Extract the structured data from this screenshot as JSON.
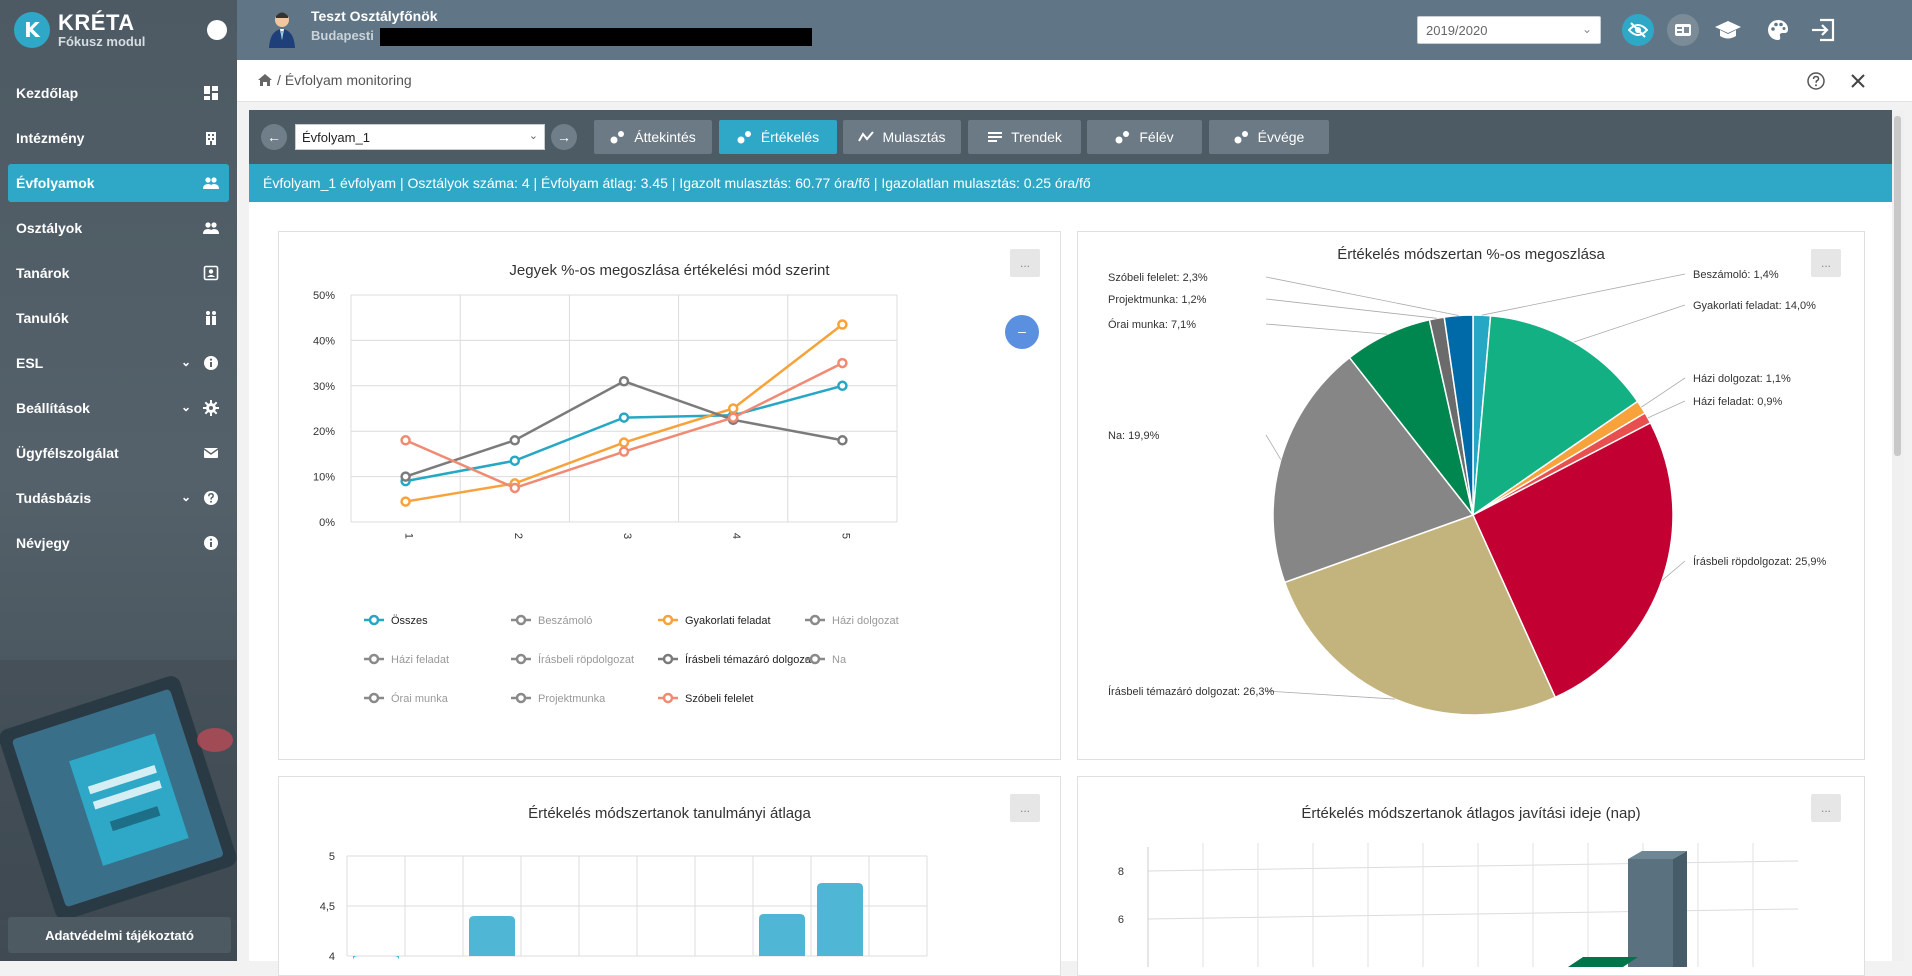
{
  "sidebar": {
    "logo_title": "KRÉTA",
    "logo_subtitle": "Fókusz modul",
    "items": [
      {
        "label": "Kezdőlap",
        "icon": "dashboard-icon"
      },
      {
        "label": "Intézmény",
        "icon": "building-icon"
      },
      {
        "label": "Évfolyamok",
        "icon": "group-icon",
        "active": true
      },
      {
        "label": "Osztályok",
        "icon": "group-icon"
      },
      {
        "label": "Tanárok",
        "icon": "contact-card-icon"
      },
      {
        "label": "Tanulók",
        "icon": "students-icon"
      },
      {
        "label": "ESL",
        "icon": "info-icon",
        "expandable": true
      },
      {
        "label": "Beállítások",
        "icon": "gear-icon",
        "expandable": true
      },
      {
        "label": "Ügyfélszolgálat",
        "icon": "mail-icon"
      },
      {
        "label": "Tudásbázis",
        "icon": "help-icon",
        "expandable": true
      },
      {
        "label": "Névjegy",
        "icon": "info-icon"
      }
    ],
    "privacy_label": "Adatvédelmi tájékoztató"
  },
  "topbar": {
    "user_name": "Teszt Osztályfőnök",
    "user_city": "Budapesti",
    "school_year": "2019/2020"
  },
  "breadcrumb": {
    "separator": "/",
    "page": "Évfolyam monitoring"
  },
  "toolbar": {
    "grade_select": "Évfolyam_1",
    "tabs": [
      {
        "label": "Áttekintés",
        "active": false
      },
      {
        "label": "Értékelés",
        "active": true
      },
      {
        "label": "Mulasztás",
        "active": false
      },
      {
        "label": "Trendek",
        "active": false
      },
      {
        "label": "Félév",
        "active": false
      },
      {
        "label": "Évvége",
        "active": false
      }
    ]
  },
  "info_bar": "Évfolyam_1 évfolyam | Osztályok száma: 4 | Évfolyam átlag: 3.45 | Igazolt mulasztás: 60.77 óra/fő | Igazolatlan mulasztás: 0.25 óra/fő",
  "cards": {
    "more_label": "...",
    "zoom_label": "–"
  },
  "chart_data": [
    {
      "type": "line",
      "title": "Jegyek %-os megoszlása értékelési mód szerint",
      "x": [
        "1",
        "2",
        "3",
        "4",
        "5"
      ],
      "ylim": [
        0,
        50
      ],
      "yticks": [
        "0%",
        "10%",
        "20%",
        "30%",
        "40%",
        "50%"
      ],
      "grid": true,
      "legend_position": "bottom",
      "series": [
        {
          "name": "Összes",
          "color": "#26a7c4",
          "visible": true,
          "values": [
            9,
            13.5,
            23,
            23.5,
            30
          ]
        },
        {
          "name": "Beszámoló",
          "color": "#888888",
          "visible": false,
          "values": null
        },
        {
          "name": "Gyakorlati feladat",
          "color": "#f7a23a",
          "visible": true,
          "values": [
            4.5,
            8.5,
            17.5,
            25,
            43.5
          ]
        },
        {
          "name": "Házi dolgozat",
          "color": "#888888",
          "visible": false,
          "values": null
        },
        {
          "name": "Házi feladat",
          "color": "#888888",
          "visible": false,
          "values": null
        },
        {
          "name": "Írásbeli röpdolgozat",
          "color": "#888888",
          "visible": false,
          "values": null
        },
        {
          "name": "Írásbeli témazáró dolgozat",
          "color": "#7b7b7b",
          "visible": true,
          "values": [
            10,
            18,
            31,
            22.5,
            18
          ]
        },
        {
          "name": "Na",
          "color": "#888888",
          "visible": false,
          "values": null
        },
        {
          "name": "Órai munka",
          "color": "#888888",
          "visible": false,
          "values": null
        },
        {
          "name": "Projektmunka",
          "color": "#888888",
          "visible": false,
          "values": null
        },
        {
          "name": "Szóbeli felelet",
          "color": "#f08a72",
          "visible": true,
          "values": [
            18,
            7.5,
            15.5,
            23,
            35
          ]
        }
      ]
    },
    {
      "type": "pie",
      "title": "Értékelés módszertan %-os megoszlása",
      "slices": [
        {
          "label": "Beszámoló: 1,4%",
          "value": 1.4,
          "color": "#26a7c4"
        },
        {
          "label": "Gyakorlati feladat: 14,0%",
          "value": 14.0,
          "color": "#12b083"
        },
        {
          "label": "Házi dolgozat: 1,1%",
          "value": 1.1,
          "color": "#f7a23a"
        },
        {
          "label": "Házi feladat: 0,9%",
          "value": 0.9,
          "color": "#e84f4f"
        },
        {
          "label": "Írásbeli röpdolgozat: 25,9%",
          "value": 25.9,
          "color": "#c30032"
        },
        {
          "label": "Írásbeli témazáró dolgozat: 26,3%",
          "value": 26.3,
          "color": "#c3b47e"
        },
        {
          "label": "Na: 19,9%",
          "value": 19.9,
          "color": "#868686"
        },
        {
          "label": "Órai munka: 7,1%",
          "value": 7.1,
          "color": "#00874f"
        },
        {
          "label": "Projektmunka: 1,2%",
          "value": 1.2,
          "color": "#6b6b6b"
        },
        {
          "label": "Szóbeli felelet: 2,3%",
          "value": 2.3,
          "color": "#0069a8"
        }
      ]
    },
    {
      "type": "bar",
      "title": "Értékelés módszertanok tanulmányi átlaga",
      "yticks": [
        "4",
        "4,5",
        "5"
      ],
      "ylim": [
        4,
        5
      ],
      "values": [
        4.0,
        4.4,
        4.42,
        4.73
      ],
      "color": "#4fb6d6"
    },
    {
      "type": "bar",
      "title": "Értékelés módszertanok átlagos javítási ideje (nap)",
      "yticks": [
        "6",
        "8"
      ],
      "ylim": [
        4,
        9
      ],
      "values": [
        8.5
      ],
      "color": "#5a7280"
    }
  ]
}
